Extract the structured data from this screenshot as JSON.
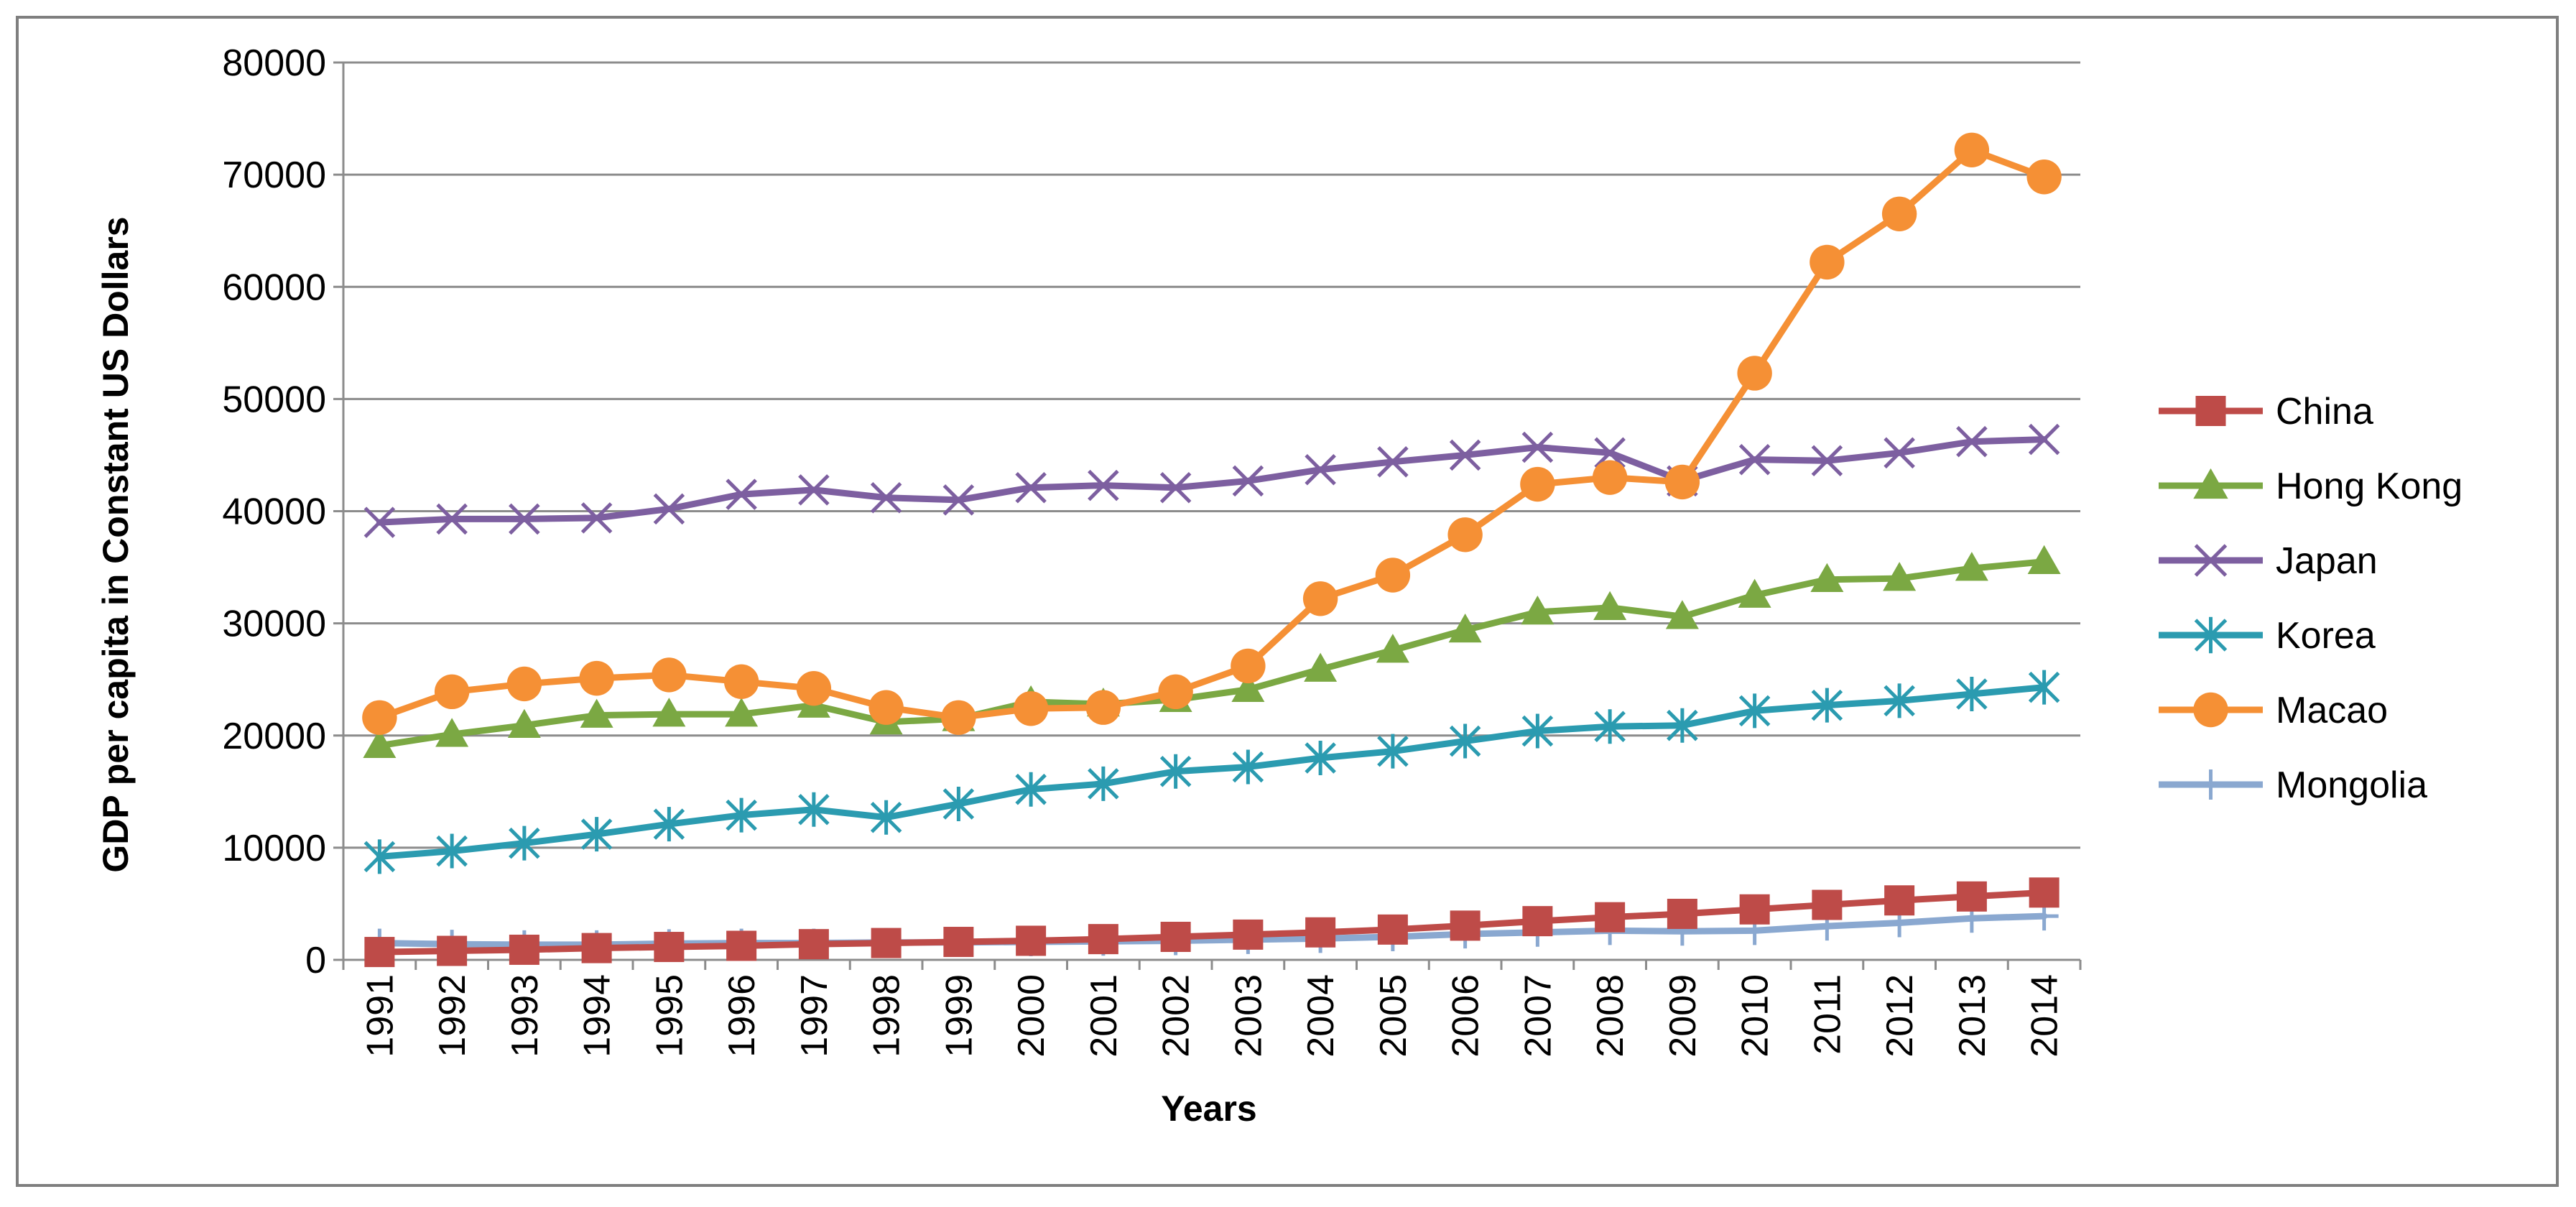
{
  "chart_data": {
    "type": "line",
    "title": "",
    "xlabel": "Years",
    "ylabel": "GDP per capita in Constant  US Dollars",
    "ylim": [
      0,
      80000
    ],
    "yticks": [
      0,
      10000,
      20000,
      30000,
      40000,
      50000,
      60000,
      70000,
      80000
    ],
    "ytick_labels": [
      "0",
      "10000",
      "20000",
      "30000",
      "40000",
      "50000",
      "60000",
      "70000",
      "80000"
    ],
    "grid": true,
    "legend_position": "right",
    "categories": [
      "1991",
      "1992",
      "1993",
      "1994",
      "1995",
      "1996",
      "1997",
      "1998",
      "1999",
      "2000",
      "2001",
      "2002",
      "2003",
      "2004",
      "2005",
      "2006",
      "2007",
      "2008",
      "2009",
      "2010",
      "2011",
      "2012",
      "2013",
      "2014"
    ],
    "series": [
      {
        "name": "China",
        "color": "#be4b48",
        "marker": "square",
        "values": [
          700,
          800,
          900,
          1050,
          1150,
          1250,
          1400,
          1500,
          1600,
          1700,
          1850,
          2050,
          2250,
          2450,
          2700,
          3050,
          3450,
          3800,
          4100,
          4500,
          4900,
          5300,
          5650,
          6000
        ]
      },
      {
        "name": "Hong Kong",
        "color": "#7ba843",
        "marker": "triangle",
        "values": [
          19100,
          20100,
          20900,
          21800,
          21900,
          21900,
          22700,
          21200,
          21500,
          23000,
          22800,
          23200,
          24100,
          25900,
          27600,
          29400,
          31000,
          31400,
          30600,
          32500,
          33900,
          34000,
          34900,
          35500
        ]
      },
      {
        "name": "Japan",
        "color": "#7d5fa0",
        "marker": "x",
        "values": [
          39000,
          39300,
          39300,
          39400,
          40200,
          41500,
          41900,
          41200,
          41000,
          42100,
          42300,
          42100,
          42700,
          43700,
          44400,
          45000,
          45700,
          45200,
          42700,
          44600,
          44500,
          45200,
          46200,
          46400
        ]
      },
      {
        "name": "Korea",
        "color": "#2b9bb0",
        "marker": "asterisk",
        "values": [
          9200,
          9700,
          10400,
          11200,
          12100,
          12900,
          13400,
          12700,
          13900,
          15200,
          15700,
          16800,
          17200,
          18000,
          18600,
          19500,
          20400,
          20800,
          20900,
          22200,
          22700,
          23100,
          23700,
          24300
        ]
      },
      {
        "name": "Macao",
        "color": "#f59035",
        "marker": "circle",
        "values": [
          21600,
          23900,
          24600,
          25100,
          25400,
          24800,
          24200,
          22500,
          21600,
          22400,
          22500,
          23900,
          26200,
          32200,
          34300,
          37900,
          42400,
          43000,
          42600,
          52300,
          62200,
          66500,
          72200,
          69800
        ]
      },
      {
        "name": "Mongolia",
        "color": "#8aa8d0",
        "marker": "plus",
        "values": [
          1500,
          1400,
          1350,
          1350,
          1450,
          1500,
          1500,
          1550,
          1550,
          1600,
          1650,
          1700,
          1800,
          1900,
          2050,
          2300,
          2450,
          2600,
          2550,
          2600,
          3000,
          3300,
          3700,
          3900
        ]
      }
    ]
  }
}
